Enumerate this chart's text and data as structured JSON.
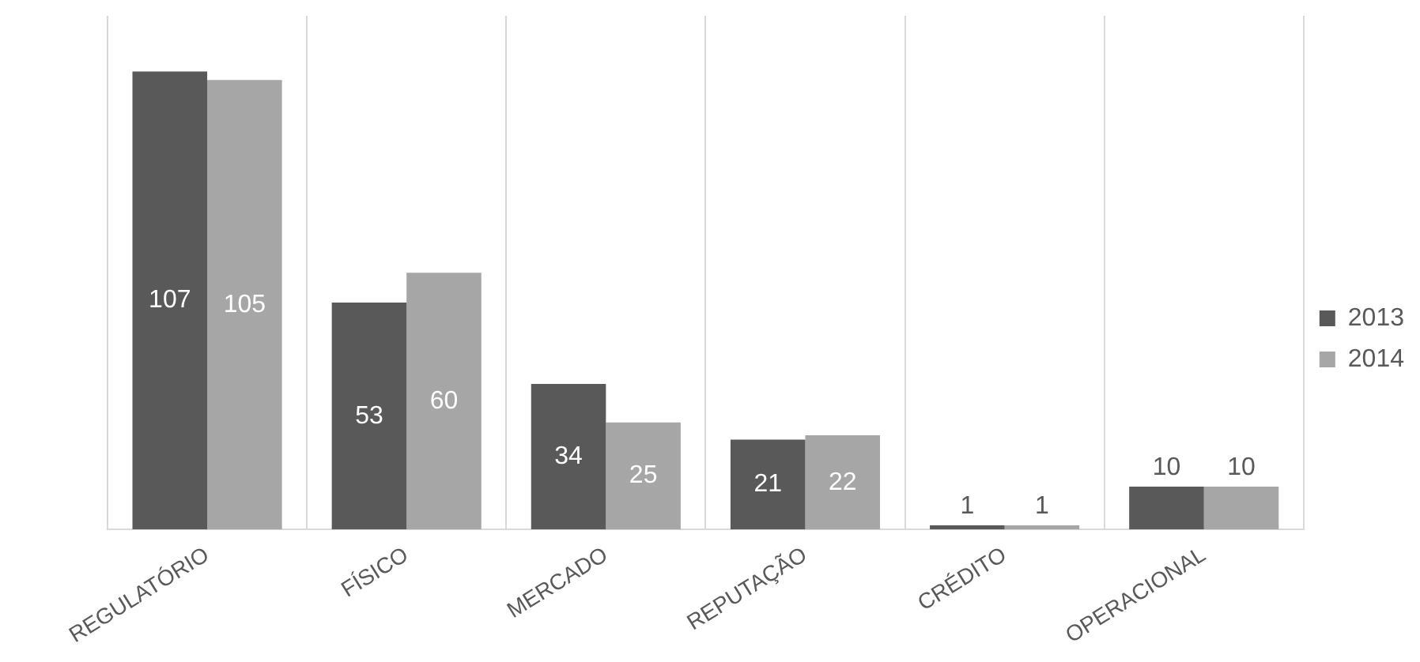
{
  "chart_data": {
    "type": "bar",
    "categories": [
      "REGULATÓRIO",
      "FÍSICO",
      "MERCADO",
      "REPUTAÇÃO",
      "CRÉDITO",
      "OPERACIONAL"
    ],
    "series": [
      {
        "name": "2013",
        "color": "#595959",
        "values": [
          107,
          53,
          34,
          21,
          1,
          10
        ]
      },
      {
        "name": "2014",
        "color": "#a6a6a6",
        "values": [
          105,
          60,
          25,
          22,
          1,
          10
        ]
      }
    ],
    "ylim": [
      0,
      120
    ],
    "tick_labels": "x",
    "grid": "x",
    "legend": "right",
    "data_labels": true
  }
}
